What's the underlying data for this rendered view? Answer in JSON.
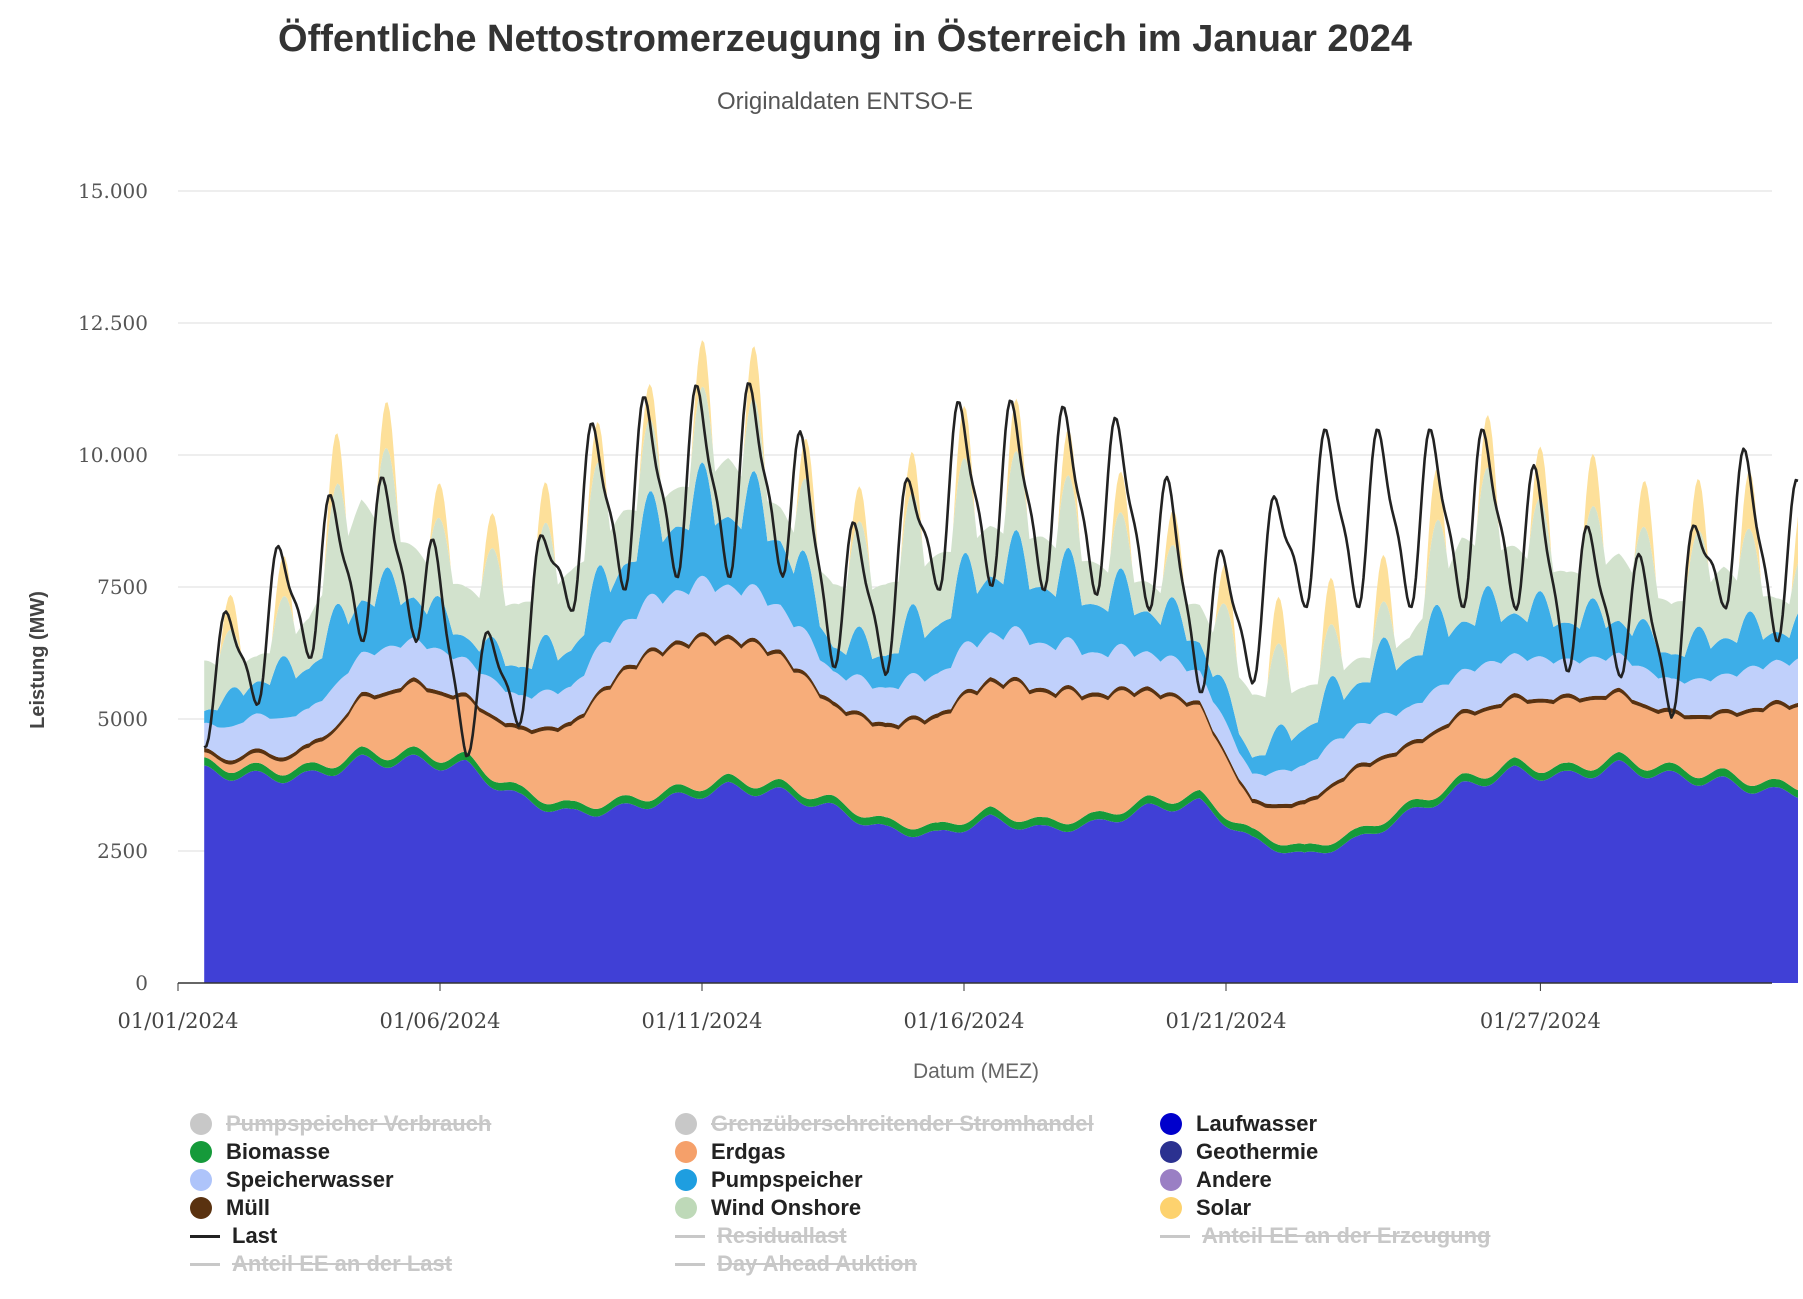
{
  "header": {
    "title": "Öffentliche Nettostromerzeugung in Österreich im Januar 2024",
    "subtitle": "Originaldaten ENTSO-E"
  },
  "legend": {
    "items": [
      {
        "label": "Pumpspeicher Verbrauch",
        "symbol": "circle",
        "color": "#c8c8c8",
        "hidden": true
      },
      {
        "label": "Grenzüberschreitender Stromhandel",
        "symbol": "circle",
        "color": "#c8c8c8",
        "hidden": true
      },
      {
        "label": "Laufwasser",
        "symbol": "circle",
        "color": "#0000cc",
        "hidden": false
      },
      {
        "label": "Biomasse",
        "symbol": "circle",
        "color": "#159a3a",
        "hidden": false
      },
      {
        "label": "Erdgas",
        "symbol": "circle",
        "color": "#f5a06a",
        "hidden": false
      },
      {
        "label": "Geothermie",
        "symbol": "circle",
        "color": "#2b3190",
        "hidden": false
      },
      {
        "label": "Speicherwasser",
        "symbol": "circle",
        "color": "#aec4fa",
        "hidden": false
      },
      {
        "label": "Pumpspeicher",
        "symbol": "circle",
        "color": "#1e9ee0",
        "hidden": false
      },
      {
        "label": "Andere",
        "symbol": "circle",
        "color": "#9a7fc4",
        "hidden": false
      },
      {
        "label": "Müll",
        "symbol": "circle",
        "color": "#5a3210",
        "hidden": false
      },
      {
        "label": "Wind Onshore",
        "symbol": "circle",
        "color": "#bed9b8",
        "hidden": false
      },
      {
        "label": "Solar",
        "symbol": "circle",
        "color": "#fdd26e",
        "hidden": false
      },
      {
        "label": "Last",
        "symbol": "line",
        "color": "#222222",
        "hidden": false
      },
      {
        "label": "Residuallast",
        "symbol": "line",
        "color": "#c8c8c8",
        "hidden": true
      },
      {
        "label": "Anteil EE an der Erzeugung",
        "symbol": "line",
        "color": "#c8c8c8",
        "hidden": true
      },
      {
        "label": "Anteil EE an der Last",
        "symbol": "line",
        "color": "#c8c8c8",
        "hidden": true
      },
      {
        "label": "Day Ahead Auktion",
        "symbol": "line",
        "color": "#c8c8c8",
        "hidden": true
      }
    ]
  },
  "chart_data": {
    "type": "area",
    "stacked": true,
    "xlabel": "Datum (MEZ)",
    "ylabel": "Leistung (MW)",
    "ylim": [
      0,
      15000
    ],
    "xlim": [
      "2024-01-01",
      "2024-01-31"
    ],
    "yticks": [
      0,
      2500,
      5000,
      7500,
      10000,
      12500,
      15000
    ],
    "ytick_labels": [
      "0",
      "2500",
      "5000",
      "7500",
      "10.000",
      "12.500",
      "15.000"
    ],
    "xticks": [
      "2024-01-01",
      "2024-01-06",
      "2024-01-11",
      "2024-01-16",
      "2024-01-21",
      "2024-01-27"
    ],
    "xtick_labels": [
      "01/01/2024",
      "01/06/2024",
      "01/11/2024",
      "01/16/2024",
      "01/21/2024",
      "01/27/2024"
    ],
    "grid": true,
    "legend_position": "bottom",
    "x": [
      "2024-01-01",
      "2024-01-02",
      "2024-01-03",
      "2024-01-04",
      "2024-01-05",
      "2024-01-06",
      "2024-01-07",
      "2024-01-08",
      "2024-01-09",
      "2024-01-10",
      "2024-01-11",
      "2024-01-12",
      "2024-01-13",
      "2024-01-14",
      "2024-01-15",
      "2024-01-16",
      "2024-01-17",
      "2024-01-18",
      "2024-01-19",
      "2024-01-20",
      "2024-01-21",
      "2024-01-22",
      "2024-01-23",
      "2024-01-24",
      "2024-01-25",
      "2024-01-26",
      "2024-01-27",
      "2024-01-28",
      "2024-01-29",
      "2024-01-30",
      "2024-01-31"
    ],
    "series": [
      {
        "name": "Laufwasser",
        "color": "#4040d6",
        "values": [
          4000,
          3900,
          3900,
          4200,
          4200,
          4100,
          3500,
          3200,
          3300,
          3500,
          3700,
          3600,
          3300,
          2900,
          2800,
          3100,
          2900,
          3000,
          3300,
          3400,
          2700,
          2400,
          2700,
          3200,
          3700,
          4000,
          3900,
          4100,
          3900,
          3800,
          3600
        ]
      },
      {
        "name": "Biomasse",
        "color": "#159a3a",
        "values": [
          150,
          150,
          150,
          150,
          150,
          150,
          150,
          150,
          150,
          150,
          150,
          150,
          150,
          150,
          150,
          150,
          150,
          150,
          150,
          150,
          150,
          150,
          150,
          150,
          150,
          150,
          150,
          150,
          150,
          150,
          150
        ]
      },
      {
        "name": "Erdgas",
        "color": "#f7ad7a",
        "values": [
          100,
          200,
          300,
          1000,
          1300,
          1100,
          1100,
          1500,
          2500,
          2800,
          2700,
          2500,
          1800,
          1800,
          2100,
          2500,
          2500,
          2300,
          2100,
          1700,
          500,
          800,
          1200,
          1100,
          1200,
          1200,
          1300,
          1200,
          1000,
          1100,
          1500
        ]
      },
      {
        "name": "Müll",
        "color": "#5a3210",
        "values": [
          80,
          80,
          80,
          80,
          80,
          80,
          80,
          80,
          80,
          80,
          80,
          80,
          80,
          80,
          80,
          80,
          80,
          80,
          80,
          80,
          80,
          80,
          80,
          80,
          80,
          80,
          80,
          80,
          80,
          80,
          80
        ]
      },
      {
        "name": "Speicherwasser",
        "color": "#c0d0fb",
        "values": [
          500,
          700,
          700,
          800,
          800,
          700,
          600,
          700,
          900,
          1000,
          1000,
          900,
          600,
          700,
          800,
          900,
          900,
          800,
          700,
          600,
          500,
          700,
          800,
          700,
          800,
          800,
          700,
          700,
          600,
          700,
          800
        ]
      },
      {
        "name": "Pumpspeicher",
        "color": "#3daee8",
        "values": [
          300,
          800,
          1000,
          1300,
          1000,
          500,
          700,
          900,
          1400,
          1600,
          1700,
          1600,
          600,
          800,
          1200,
          1400,
          1400,
          1200,
          1000,
          700,
          400,
          900,
          1000,
          1200,
          1200,
          1000,
          900,
          800,
          600,
          900,
          700
        ]
      },
      {
        "name": "Wind Onshore",
        "color": "#d2e2cd",
        "values": [
          1200,
          600,
          1200,
          2400,
          1200,
          1200,
          1500,
          1900,
          1300,
          900,
          1400,
          800,
          1500,
          1700,
          1700,
          1200,
          1200,
          1000,
          700,
          900,
          1500,
          1000,
          600,
          500,
          2000,
          1600,
          1200,
          1600,
          1200,
          1700,
          800
        ]
      },
      {
        "name": "Solar",
        "color": "#fde09a",
        "values": [
          300,
          300,
          400,
          500,
          300,
          300,
          300,
          400,
          300,
          300,
          500,
          400,
          300,
          300,
          400,
          500,
          400,
          400,
          300,
          300,
          400,
          400,
          400,
          400,
          500,
          400,
          500,
          400,
          400,
          500,
          500
        ]
      }
    ],
    "line": {
      "name": "Last",
      "color": "#222222",
      "values": [
        5500,
        6500,
        7600,
        8000,
        8100,
        5300,
        6000,
        8700,
        9200,
        9500,
        9500,
        9600,
        7400,
        7200,
        9200,
        9300,
        9200,
        9100,
        8800,
        6800,
        7000,
        8800,
        8800,
        8800,
        8800,
        8800,
        7300,
        7200,
        6200,
        8800,
        8000
      ]
    }
  }
}
